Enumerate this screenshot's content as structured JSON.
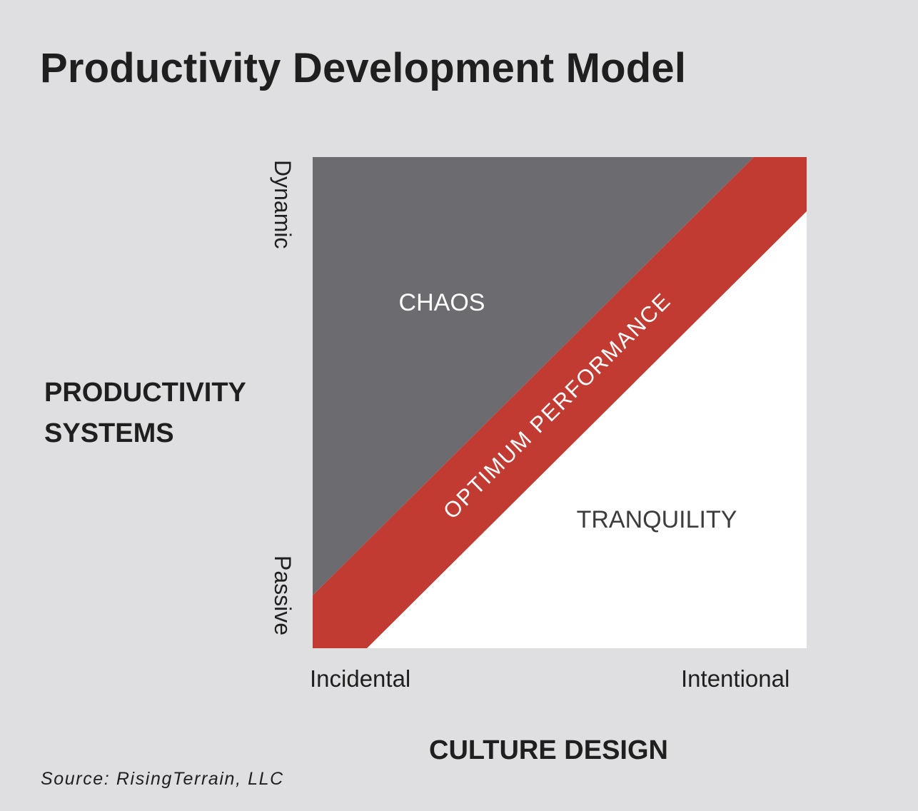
{
  "title": "Productivity Development Model",
  "y_axis": {
    "title_line1": "PRODUCTIVITY",
    "title_line2": "SYSTEMS",
    "top_label": "Dynamic",
    "bottom_label": "Passive"
  },
  "x_axis": {
    "title": "CULTURE DESIGN",
    "left_label": "Incidental",
    "right_label": "Intentional"
  },
  "regions": {
    "upper": "CHAOS",
    "band": "OPTIMUM PERFORMANCE",
    "lower": "TRANQUILITY"
  },
  "colors": {
    "background": "#dfdfe1",
    "chaos": "#6c6c70",
    "optimum": "#c23b32",
    "tranquility": "#ffffff"
  },
  "source": "Source: RisingTerrain, LLC"
}
